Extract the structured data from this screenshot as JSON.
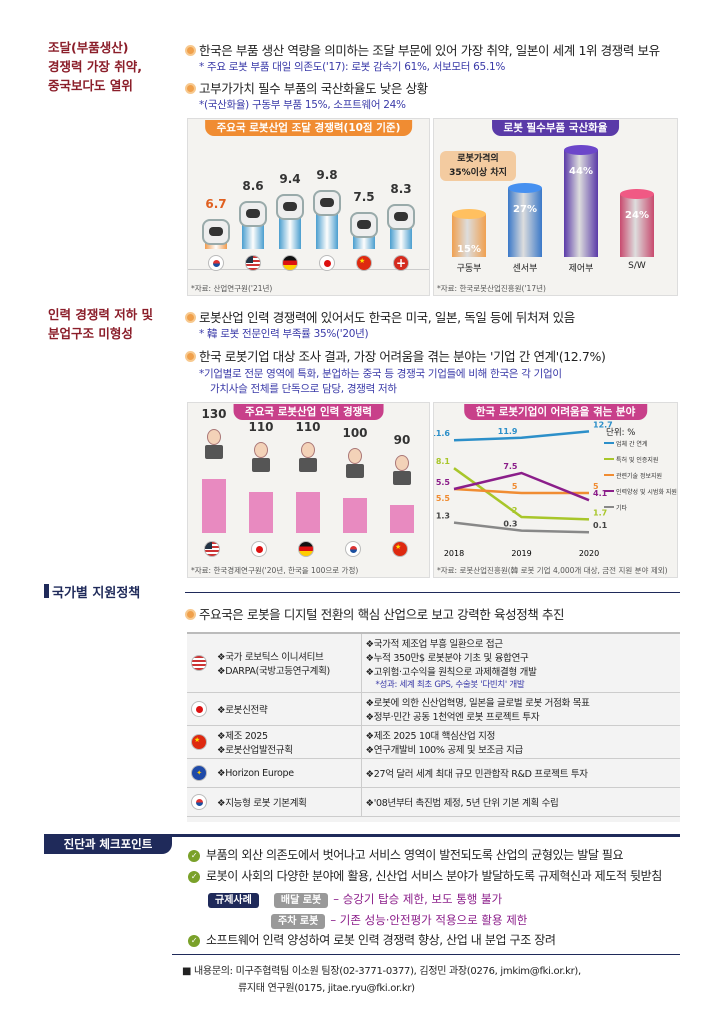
{
  "sec1": {
    "label": [
      "조달(부품생산)",
      "경쟁력 가장 취약,",
      "중국보다도 열위"
    ],
    "b1": "한국은 부품 생산 역량을 의미하는 조달 부문에 있어 가장 취약, 일본이 세계 1위 경쟁력 보유",
    "s1": "* 주요 로봇 부품 대일 의존도('17): 로봇 감속기 61%, 서보모터 65.1%",
    "b2": "고부가가치 필수 부품의 국산화율도 낮은 상황",
    "s2": "*(국산화율) 구동부 부품 15%, 소프트웨어 24%"
  },
  "chart1": {
    "title": "주요국 로봇산업 조달 경쟁력(10점 기준)",
    "source": "*자료: 산업연구원('21년)"
  },
  "chart2": {
    "title": "로봇 필수부품 국산화율",
    "callout": [
      "로봇가격의",
      "35%이상 차지"
    ],
    "source": "*자료: 한국로봇산업진흥원('17년)"
  },
  "sec2": {
    "label": [
      "인력 경쟁력 저하 및",
      "분업구조 미형성"
    ],
    "b1": "로봇산업 인력 경쟁력에 있어서도 한국은 미국, 일본, 독일 등에 뒤처져 있음",
    "s1": "* 韓 로봇 전문인력 부족률 35%('20년)",
    "b2": "한국 로봇기업 대상 조사 결과, 가장 어려움을 겪는 분야는 '기업 간 연계'(12.7%)",
    "s2a": "*기업별로 전문 영역에 특화, 분업하는 중국 등 경쟁국 기업들에 비해 한국은 각 기업이",
    "s2b": "가치사슬 전체를 단독으로 담당, 경쟁력 저하"
  },
  "chart3": {
    "title": "주요국 로봇산업 인력 경쟁력",
    "source": "*자료: 한국경제연구원('20년, 한국을 100으로 가정)"
  },
  "chart4": {
    "title": "한국 로봇기업이 어려움을 겪는 분야",
    "unit": "단위: %",
    "source": "*자료: 로봇산업진흥원(韓 로봇 기업 4,000개 대상, 금전 지원 분야 제외)"
  },
  "sec3": {
    "heading": "국가별 지원정책",
    "bullet": "주요국은 로봇을 디지털 전환의 핵심 산업으로 보고 강력한 육성정책 추진"
  },
  "table": [
    {
      "flag": "us",
      "left": [
        "❖국가 로보틱스 이니셔티브",
        "❖DARPA(국방고등연구계획)"
      ],
      "right": [
        "❖국가적 제조업 부흥 일환으로 접근",
        "❖누적 350만$ 로봇분야 기초 및 융합연구",
        "❖고위험·고수익을 원칙으로 과제해결형 개발"
      ],
      "note": "*성과: 세계 최초 GPS, 수술봇 '다빈치' 개발"
    },
    {
      "flag": "jp",
      "left": [
        "❖로봇신전략"
      ],
      "right": [
        "❖로봇에 의한 신산업혁명, 일본을 글로벌 로봇 거점화 목표",
        "❖정부·민간 공동 1천억엔 로봇 프로젝트 투자"
      ],
      "note": ""
    },
    {
      "flag": "cn",
      "left": [
        "❖제조 2025",
        "❖로봇산업발전규획"
      ],
      "right": [
        "❖제조 2025 10대 핵심산업 지정",
        "❖연구개발비 100% 공제 및 보조금 지급"
      ],
      "note": ""
    },
    {
      "flag": "eu",
      "left": [
        "❖Horizon Europe"
      ],
      "right": [
        "❖27억 달러 세계 최대 규모 민관합작 R&D 프로젝트 투자"
      ],
      "note": ""
    },
    {
      "flag": "kr",
      "left": [
        "❖지능형 로봇 기본계획"
      ],
      "right": [
        "❖'08년부터 촉진법 제정, 5년 단위 기본 계획 수립"
      ],
      "note": ""
    }
  ],
  "sec4": {
    "heading": "진단과 체크포인트",
    "c1": "부품의 외산 의존도에서 벗어나고 서비스 영역이 발전되도록 산업의 균형있는 발달 필요",
    "c2": "로봇이 사회의 다양한 분야에 활용, 신산업 서비스 분야가 발달하도록 규제혁신과 제도적 뒷받침",
    "tag_case": "규제사례",
    "tag_a": "배달 로봇",
    "text_a": "– 승강기 탑승 제한, 보도 통행 불가",
    "tag_b": "주차 로봇",
    "text_b": "– 기존 성능·안전평가 적용으로 활용 제한",
    "c3": "소프트웨어 인력 양성하여 로봇 인력 경쟁력 향상, 산업 내 분업 구조 장려"
  },
  "contact": {
    "l1": "■ 내용문의: 미구주협력팀 이소원 팀장(02-3771-0377), 김정민 과장(0276, jmkim@fki.or.kr),",
    "l2": "류지태 연구원(0175, jitae.ryu@fki.or.kr)"
  },
  "chart_data": [
    {
      "type": "bar",
      "title": "주요국 로봇산업 조달 경쟁력(10점 기준)",
      "categories": [
        "한국",
        "미국",
        "독일",
        "일본",
        "중국",
        "스위스"
      ],
      "values": [
        6.7,
        8.6,
        9.4,
        9.8,
        7.5,
        8.3
      ],
      "ylim": [
        0,
        10
      ],
      "colors": [
        "#f08c32",
        "#2c8fc9",
        "#2c8fc9",
        "#2c8fc9",
        "#2c8fc9",
        "#2c8fc9"
      ]
    },
    {
      "type": "bar",
      "title": "로봇 필수부품 국산화율",
      "categories": [
        "구동부",
        "센서부",
        "제어부",
        "S/W"
      ],
      "values": [
        15,
        27,
        44,
        24
      ],
      "labels": [
        "15%",
        "27%",
        "44%",
        "24%"
      ],
      "ylim": [
        0,
        50
      ],
      "colors": [
        "#f0a050",
        "#3a78c8",
        "#5a3aa8",
        "#c84a6e"
      ]
    },
    {
      "type": "bar",
      "title": "주요국 로봇산업 인력 경쟁력",
      "categories": [
        "미국",
        "일본",
        "독일",
        "한국",
        "중국"
      ],
      "values": [
        130,
        110,
        110,
        100,
        90
      ],
      "ylim": [
        0,
        140
      ]
    },
    {
      "type": "line",
      "title": "한국 로봇기업이 어려움을 겪는 분야",
      "x": [
        "2018",
        "2019",
        "2020"
      ],
      "ylim": [
        0,
        13
      ],
      "ylabel": "단위: %",
      "series": [
        {
          "name": "업체 간 연계",
          "values": [
            11.6,
            11.9,
            12.7
          ],
          "color": "#2c8fc9"
        },
        {
          "name": "특허 및 인증지원",
          "values": [
            8.1,
            2,
            1.7
          ],
          "color": "#a8c62a"
        },
        {
          "name": "관련기술 정보지원",
          "values": [
            5.5,
            5,
            5
          ],
          "color": "#f08c32"
        },
        {
          "name": "인력양성 및 시범화 지원",
          "values": [
            5.5,
            7.5,
            4.1
          ],
          "color": "#8b1e8a"
        },
        {
          "name": "기타",
          "values": [
            1.3,
            0.3,
            0.1
          ],
          "color": "#888"
        }
      ]
    }
  ]
}
